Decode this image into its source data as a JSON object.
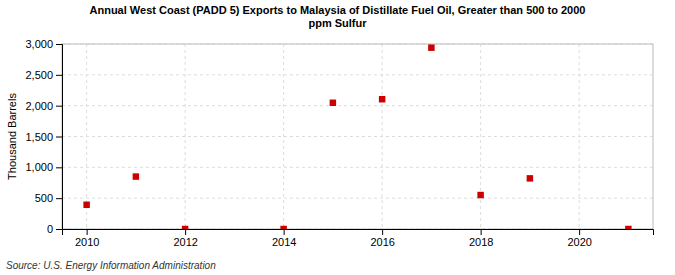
{
  "chart_data": {
    "type": "scatter",
    "title": "Annual West Coast (PADD 5) Exports to Malaysia of Distillate Fuel Oil, Greater than 500 to 2000\nppm Sulfur",
    "ylabel": "Thousand Barrels",
    "source": "Source: U.S. Energy Information Administration",
    "x": [
      2010,
      2011,
      2012,
      2014,
      2015,
      2016,
      2017,
      2018,
      2019,
      2021
    ],
    "values": [
      393,
      850,
      0,
      0,
      2047,
      2104,
      2940,
      551,
      821,
      0
    ],
    "color": "#cc0000",
    "marker": "square",
    "xlim": [
      2009.5,
      2021.5
    ],
    "xticks": [
      2010,
      2012,
      2014,
      2016,
      2018,
      2020
    ],
    "ylim": [
      0,
      3000
    ],
    "yticks": [
      0,
      500,
      {
        "value": 1000,
        "label": "1,000"
      },
      {
        "value": 1500,
        "label": "1,500"
      },
      {
        "value": 2000,
        "label": "2,000"
      },
      {
        "value": 2500,
        "label": "2,500"
      },
      {
        "value": 3000,
        "label": "3,000"
      }
    ],
    "grid": true
  }
}
